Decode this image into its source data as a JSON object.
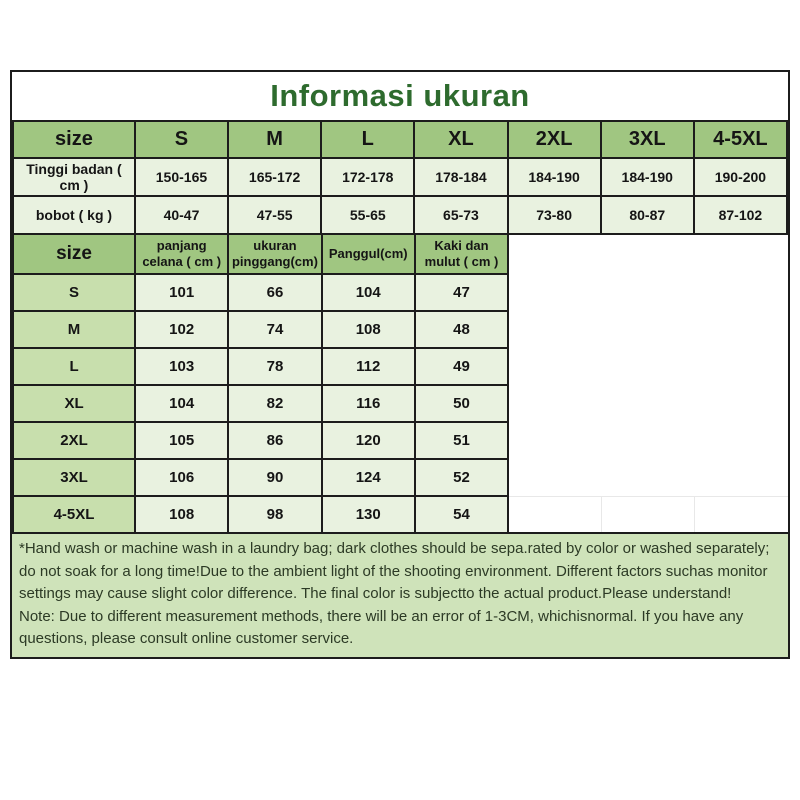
{
  "title": "Informasi ukuran",
  "size_table": {
    "header": [
      "size",
      "S",
      "M",
      "L",
      "XL",
      "2XL",
      "3XL",
      "4-5XL"
    ],
    "rows": [
      {
        "label": "Tinggi badan ( cm )",
        "values": [
          "150-165",
          "165-172",
          "172-178",
          "178-184",
          "184-190",
          "184-190",
          "190-200"
        ]
      },
      {
        "label": "bobot ( kg )",
        "values": [
          "40-47",
          "47-55",
          "55-65",
          "65-73",
          "73-80",
          "80-87",
          "87-102"
        ]
      }
    ]
  },
  "measure_table": {
    "header": [
      "size",
      "panjang celana ( cm )",
      "ukuran pinggang(cm)",
      "Panggul(cm)",
      "Kaki dan mulut ( cm )"
    ],
    "rows": [
      {
        "label": "S",
        "values": [
          "101",
          "66",
          "104",
          "47"
        ]
      },
      {
        "label": "M",
        "values": [
          "102",
          "74",
          "108",
          "48"
        ]
      },
      {
        "label": "L",
        "values": [
          "103",
          "78",
          "112",
          "49"
        ]
      },
      {
        "label": "XL",
        "values": [
          "104",
          "82",
          "116",
          "50"
        ]
      },
      {
        "label": "2XL",
        "values": [
          "105",
          "86",
          "120",
          "51"
        ]
      },
      {
        "label": "3XL",
        "values": [
          "106",
          "90",
          "124",
          "52"
        ]
      },
      {
        "label": "4-5XL",
        "values": [
          "108",
          "98",
          "130",
          "54"
        ]
      }
    ]
  },
  "notes": {
    "care": "*Hand wash or machine wash in a laundry bag; dark clothes should be sepa.rated by color or washed separately; do not soak for a long time!Due to the ambient light of the shooting environment. Different factors suchas monitor settings may cause slight color difference. The final color is subjectto the actual product.Please understand!",
    "measurement": "Note: Due to different measurement methods, there will be an error of 1-3CM, whichisnormal. If you have any questions, please consult online customer service."
  },
  "colors": {
    "header_fill": "#a0c681",
    "label_fill": "#c8dfad",
    "cell_fill": "#e9f2e0",
    "note_fill": "#cfe3ba",
    "title_text": "#2e6b2e",
    "grid_black": "#1c1c1c",
    "grid_faint": "#e8e8e8"
  }
}
